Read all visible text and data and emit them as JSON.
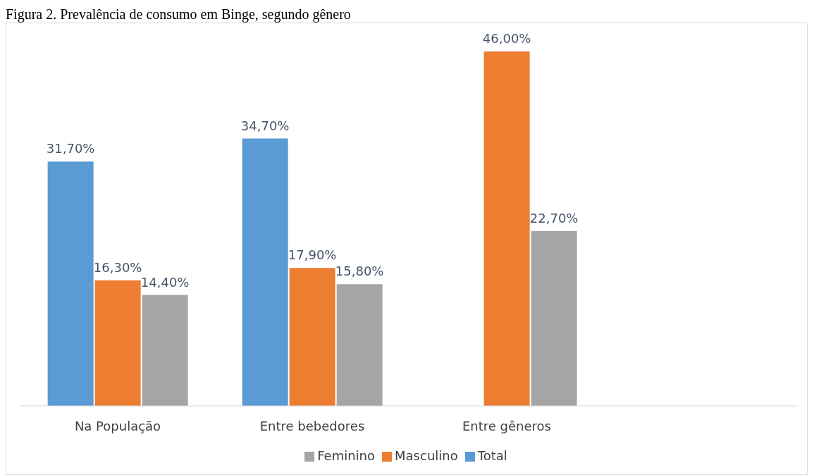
{
  "chart_data": {
    "type": "bar",
    "title": "Figura 2. Prevalência de consumo em Binge, segundo gênero",
    "categories": [
      "Na População",
      "Entre bebedores",
      "Entre gêneros",
      null
    ],
    "series": [
      {
        "name": "Total",
        "color": "#5b9bd5",
        "values": [
          31.7,
          34.7,
          null,
          null
        ],
        "value_labels": [
          "31,70%",
          "34,70%",
          null,
          null
        ]
      },
      {
        "name": "Masculino",
        "color": "#ed7d31",
        "values": [
          16.3,
          17.9,
          46.0,
          null
        ],
        "value_labels": [
          "16,30%",
          "17,90%",
          "46,00%",
          null
        ]
      },
      {
        "name": "Feminino",
        "color": "#a5a5a5",
        "values": [
          14.4,
          15.8,
          22.7,
          null
        ],
        "value_labels": [
          "14,40%",
          "15,80%",
          "22,70%",
          null
        ]
      }
    ],
    "legend": "bottom",
    "grid": false
  }
}
